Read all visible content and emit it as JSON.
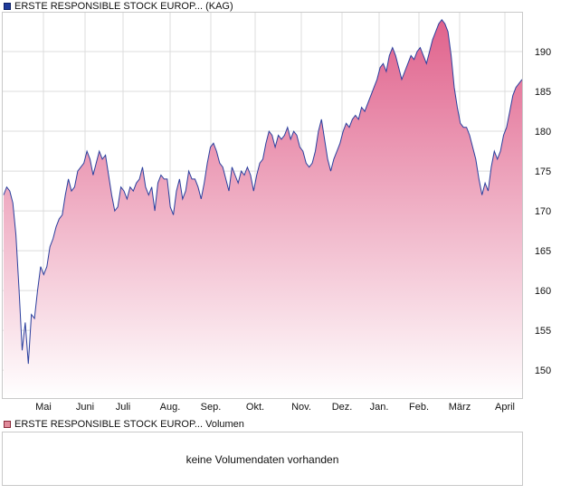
{
  "legend": {
    "price_series": "ERSTE RESPONSIBLE STOCK EUROP... (KAG)",
    "volume_series": "ERSTE RESPONSIBLE STOCK EUROP... Volumen"
  },
  "volume_panel": {
    "message": "keine Volumendaten vorhanden"
  },
  "colors": {
    "line": "#2a3f9e",
    "fill_top": "#e0628c",
    "fill_bottom": "#ffffff",
    "grid": "#dcdcdc",
    "frame": "#c9c9c9"
  },
  "chart_data": {
    "type": "area",
    "x_labels": [
      "Mai",
      "Juni",
      "Juli",
      "Aug.",
      "Sep.",
      "Okt.",
      "Nov.",
      "Dez.",
      "Jan.",
      "Feb.",
      "März",
      "April"
    ],
    "y_ticks": [
      150,
      155,
      160,
      165,
      170,
      175,
      180,
      185,
      190
    ],
    "ylim": [
      146.5,
      195
    ],
    "grid": true,
    "y_axis_side": "right",
    "series": [
      {
        "values": [
          172,
          173,
          172.5,
          171,
          167,
          160,
          152.5,
          156,
          150.8,
          157,
          156.5,
          160,
          163,
          162,
          163,
          165.5,
          166.5,
          168,
          169,
          169.5,
          172,
          174,
          172.5,
          173,
          175,
          175.5,
          176,
          177.5,
          176.5,
          174.5,
          176,
          177.5,
          176.5,
          177,
          174.5,
          172,
          170,
          170.5,
          173,
          172.5,
          171.5,
          173,
          172.5,
          173.5,
          174,
          175.5,
          173,
          172,
          173,
          170,
          173.5,
          174.5,
          174,
          174,
          170.5,
          169.5,
          172.5,
          174,
          171.5,
          172.5,
          175,
          174,
          174,
          173,
          171.5,
          173.5,
          176,
          178,
          178.5,
          177.5,
          176,
          175.5,
          174,
          172.5,
          175.5,
          174.5,
          173.5,
          175,
          174.5,
          175.5,
          174.5,
          172.5,
          174.5,
          176,
          176.5,
          178.5,
          180,
          179.5,
          178,
          179.5,
          179,
          179.5,
          180.5,
          179,
          180,
          179.5,
          178,
          177.5,
          176,
          175.5,
          176,
          177.5,
          180,
          181.5,
          179,
          176.5,
          175,
          176.5,
          177.5,
          178.5,
          180,
          181,
          180.5,
          181.5,
          182,
          181.5,
          183,
          182.5,
          183.5,
          184.5,
          185.5,
          186.5,
          188,
          188.5,
          187.5,
          189.5,
          190.5,
          189.5,
          188,
          186.5,
          187.5,
          188.5,
          189.5,
          189,
          190,
          190.5,
          189.5,
          188.5,
          190,
          191.5,
          192.5,
          193.5,
          194,
          193.5,
          192.5,
          189.5,
          185.5,
          183,
          181,
          180.5,
          180.5,
          179.5,
          178,
          176.5,
          174,
          172,
          173.5,
          172.5,
          175.5,
          177.5,
          176.5,
          177.5,
          179.5,
          180.5,
          182.5,
          184.5,
          185.5,
          186,
          186.5
        ]
      }
    ]
  }
}
